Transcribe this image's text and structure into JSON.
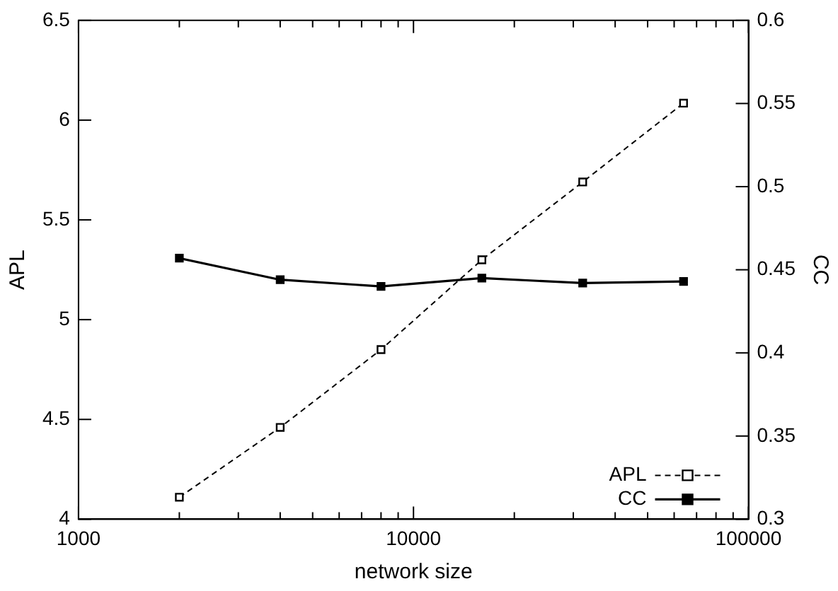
{
  "chart_data": {
    "type": "line",
    "xlabel": "network size",
    "ylabel": "APL",
    "y2label": "CC",
    "x": [
      2000,
      4000,
      8000,
      16000,
      32000,
      64000
    ],
    "series": [
      {
        "name": "APL",
        "color": "#000000",
        "values": [
          4.11,
          4.46,
          4.85,
          5.3,
          5.69,
          6.085
        ],
        "line_style": "dashed"
      },
      {
        "name": "CC",
        "color": "#000000",
        "values": [
          0.457,
          0.444,
          0.44,
          0.445,
          0.442,
          0.443
        ],
        "axis": "y2",
        "line_style": "solid"
      }
    ],
    "log": "x",
    "xlim": [
      1000,
      100000
    ],
    "xticks": [
      1000,
      {
        "value": 2000,
        "label": null
      },
      {
        "value": 3000,
        "label": null
      },
      {
        "value": 4000,
        "label": null
      },
      {
        "value": 5000,
        "label": null
      },
      {
        "value": 6000,
        "label": null
      },
      {
        "value": 7000,
        "label": null
      },
      {
        "value": 8000,
        "label": null
      },
      {
        "value": 9000,
        "label": null
      },
      10000,
      {
        "value": 20000,
        "label": null
      },
      {
        "value": 30000,
        "label": null
      },
      {
        "value": 40000,
        "label": null
      },
      {
        "value": 50000,
        "label": null
      },
      {
        "value": 60000,
        "label": null
      },
      {
        "value": 70000,
        "label": null
      },
      {
        "value": 80000,
        "label": null
      },
      {
        "value": 90000,
        "label": null
      },
      100000
    ],
    "ylim": [
      4,
      6.5
    ],
    "yticks": [
      4,
      4.5,
      5,
      5.5,
      6,
      6.5
    ],
    "y2lim": [
      0.3,
      0.6
    ],
    "y2ticks": [
      0.3,
      0.35,
      0.4,
      0.45,
      0.5,
      0.55,
      0.6
    ],
    "grid": false,
    "legend": "bottom right",
    "marker": "square"
  }
}
